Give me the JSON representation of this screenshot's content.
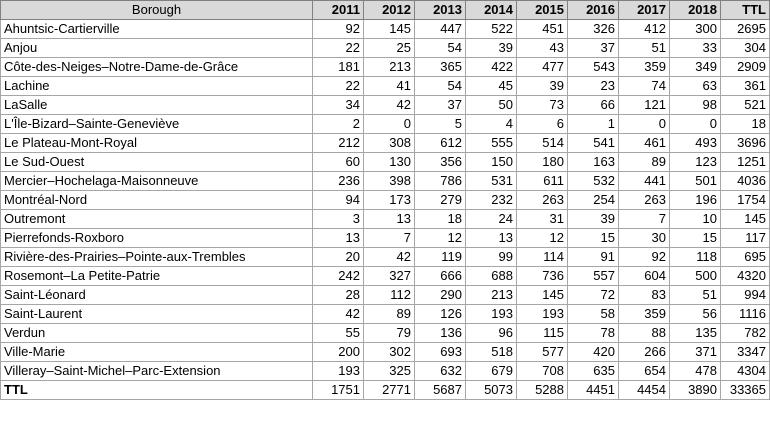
{
  "header": {
    "borough": "Borough",
    "years": [
      "2011",
      "2012",
      "2013",
      "2014",
      "2015",
      "2016",
      "2017",
      "2018"
    ],
    "ttl": "TTL"
  },
  "rows": [
    {
      "name": "Ahuntsic-Cartierville",
      "values": [
        "92",
        "145",
        "447",
        "522",
        "451",
        "326",
        "412",
        "300"
      ],
      "ttl": "2695"
    },
    {
      "name": "Anjou",
      "values": [
        "22",
        "25",
        "54",
        "39",
        "43",
        "37",
        "51",
        "33"
      ],
      "ttl": "304"
    },
    {
      "name": "Côte-des-Neiges–Notre-Dame-de-Grâce",
      "values": [
        "181",
        "213",
        "365",
        "422",
        "477",
        "543",
        "359",
        "349"
      ],
      "ttl": "2909"
    },
    {
      "name": "Lachine",
      "values": [
        "22",
        "41",
        "54",
        "45",
        "39",
        "23",
        "74",
        "63"
      ],
      "ttl": "361"
    },
    {
      "name": "LaSalle",
      "values": [
        "34",
        "42",
        "37",
        "50",
        "73",
        "66",
        "121",
        "98"
      ],
      "ttl": "521"
    },
    {
      "name": "L'Île-Bizard–Sainte-Geneviève",
      "values": [
        "2",
        "0",
        "5",
        "4",
        "6",
        "1",
        "0",
        "0"
      ],
      "ttl": "18"
    },
    {
      "name": "Le Plateau-Mont-Royal",
      "values": [
        "212",
        "308",
        "612",
        "555",
        "514",
        "541",
        "461",
        "493"
      ],
      "ttl": "3696"
    },
    {
      "name": "Le Sud-Ouest",
      "values": [
        "60",
        "130",
        "356",
        "150",
        "180",
        "163",
        "89",
        "123"
      ],
      "ttl": "1251"
    },
    {
      "name": "Mercier–Hochelaga-Maisonneuve",
      "values": [
        "236",
        "398",
        "786",
        "531",
        "611",
        "532",
        "441",
        "501"
      ],
      "ttl": "4036"
    },
    {
      "name": "Montréal-Nord",
      "values": [
        "94",
        "173",
        "279",
        "232",
        "263",
        "254",
        "263",
        "196"
      ],
      "ttl": "1754"
    },
    {
      "name": "Outremont",
      "values": [
        "3",
        "13",
        "18",
        "24",
        "31",
        "39",
        "7",
        "10"
      ],
      "ttl": "145"
    },
    {
      "name": "Pierrefonds-Roxboro",
      "values": [
        "13",
        "7",
        "12",
        "13",
        "12",
        "15",
        "30",
        "15"
      ],
      "ttl": "117"
    },
    {
      "name": "Rivière-des-Prairies–Pointe-aux-Trembles",
      "values": [
        "20",
        "42",
        "119",
        "99",
        "114",
        "91",
        "92",
        "118"
      ],
      "ttl": "695"
    },
    {
      "name": "Rosemont–La Petite-Patrie",
      "values": [
        "242",
        "327",
        "666",
        "688",
        "736",
        "557",
        "604",
        "500"
      ],
      "ttl": "4320"
    },
    {
      "name": "Saint-Léonard",
      "values": [
        "28",
        "112",
        "290",
        "213",
        "145",
        "72",
        "83",
        "51"
      ],
      "ttl": "994"
    },
    {
      "name": "Saint-Laurent",
      "values": [
        "42",
        "89",
        "126",
        "193",
        "193",
        "58",
        "359",
        "56"
      ],
      "ttl": "1116"
    },
    {
      "name": "Verdun",
      "values": [
        "55",
        "79",
        "136",
        "96",
        "115",
        "78",
        "88",
        "135"
      ],
      "ttl": "782"
    },
    {
      "name": "Ville-Marie",
      "values": [
        "200",
        "302",
        "693",
        "518",
        "577",
        "420",
        "266",
        "371"
      ],
      "ttl": "3347"
    },
    {
      "name": "Villeray–Saint-Michel–Parc-Extension",
      "values": [
        "193",
        "325",
        "632",
        "679",
        "708",
        "635",
        "654",
        "478"
      ],
      "ttl": "4304"
    }
  ],
  "total": {
    "label": "TTL",
    "values": [
      "1751",
      "2771",
      "5687",
      "5073",
      "5288",
      "4451",
      "4454",
      "3890"
    ],
    "ttl": "33365"
  }
}
